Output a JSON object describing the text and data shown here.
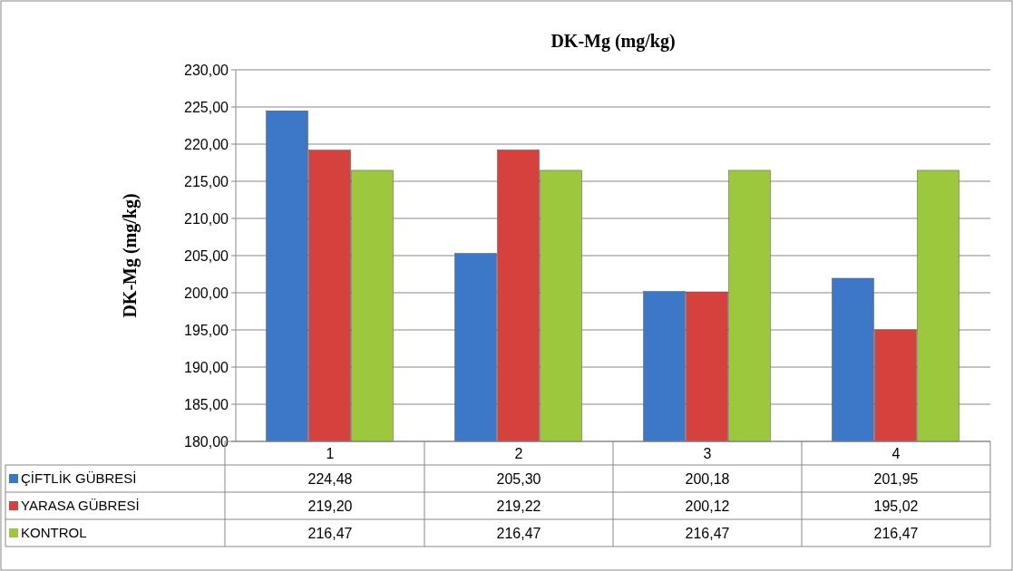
{
  "chart_data": {
    "type": "bar",
    "title": "DK-Mg (mg/kg)",
    "ylabel": "DK-Mg (mg/kg)",
    "categories": [
      "1",
      "2",
      "3",
      "4"
    ],
    "series": [
      {
        "name": "ÇİFTLİK GÜBRESİ",
        "color": "#3d77c8",
        "values": [
          224.48,
          205.3,
          200.18,
          201.95
        ],
        "value_labels": [
          "224,48",
          "205,30",
          "200,18",
          "201,95"
        ]
      },
      {
        "name": "YARASA GÜBRESİ",
        "color": "#d6413d",
        "values": [
          219.2,
          219.22,
          200.12,
          195.02
        ],
        "value_labels": [
          "219,20",
          "219,22",
          "200,12",
          "195,02"
        ]
      },
      {
        "name": "KONTROL",
        "color": "#9bc83c",
        "values": [
          216.47,
          216.47,
          216.47,
          216.47
        ],
        "value_labels": [
          "216,47",
          "216,47",
          "216,47",
          "216,47"
        ]
      }
    ],
    "ylim": [
      180,
      230
    ],
    "yticks": [
      {
        "value": 180,
        "label": "180,00"
      },
      {
        "value": 185,
        "label": "185,00"
      },
      {
        "value": 190,
        "label": "190,00"
      },
      {
        "value": 195,
        "label": "195,00"
      },
      {
        "value": 200,
        "label": "200,00"
      },
      {
        "value": 205,
        "label": "205,00"
      },
      {
        "value": 210,
        "label": "210,00"
      },
      {
        "value": 215,
        "label": "215,00"
      },
      {
        "value": 220,
        "label": "220,00"
      },
      {
        "value": 225,
        "label": "225,00"
      },
      {
        "value": 230,
        "label": "230,00"
      }
    ],
    "grid": "y",
    "legend": "bottom"
  }
}
